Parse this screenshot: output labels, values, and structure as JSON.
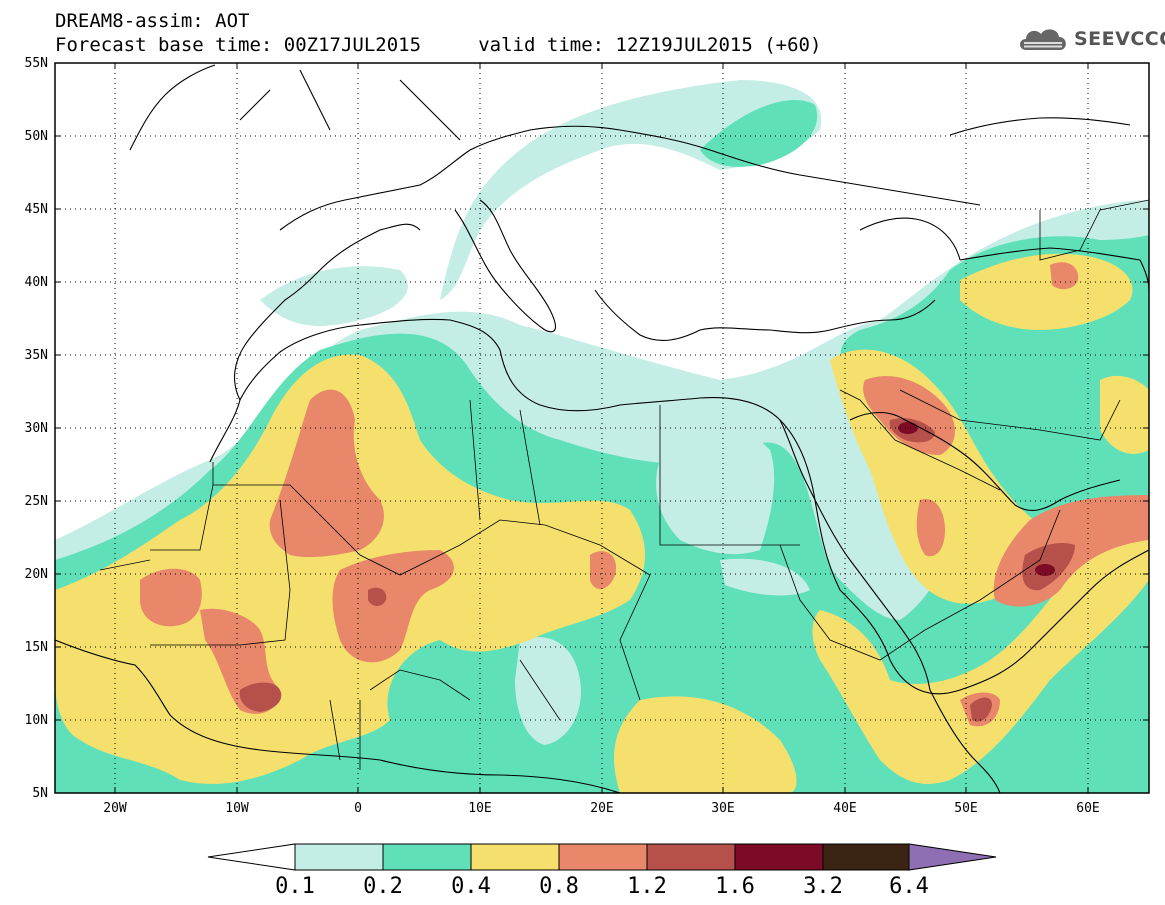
{
  "title": {
    "line1": "DREAM8-assim: AOT",
    "line2": "Forecast base time: 00Z17JUL2015     valid time: 12Z19JUL2015 (+60)"
  },
  "logo": {
    "text": "SEEVCCC",
    "icon": "cloud-icon"
  },
  "map": {
    "lon_range": [
      -25,
      65
    ],
    "lat_range": [
      5,
      55
    ],
    "lat_labels": [
      "5N",
      "10N",
      "15N",
      "20N",
      "25N",
      "30N",
      "35N",
      "40N",
      "45N",
      "50N",
      "55N"
    ],
    "lon_labels": [
      "20W",
      "10W",
      "0",
      "10E",
      "20E",
      "30E",
      "40E",
      "50E",
      "60E"
    ],
    "gridlines": "dotted"
  },
  "colorbar": {
    "levels": [
      "0.1",
      "0.2",
      "0.4",
      "0.8",
      "1.2",
      "1.6",
      "3.2",
      "6.4"
    ],
    "colors": [
      "#ffffff",
      "#c4ede5",
      "#5fe0b8",
      "#f5e06e",
      "#e8876a",
      "#b5504a",
      "#7d0a26",
      "#3b2414",
      "#8f6fb3"
    ]
  }
}
